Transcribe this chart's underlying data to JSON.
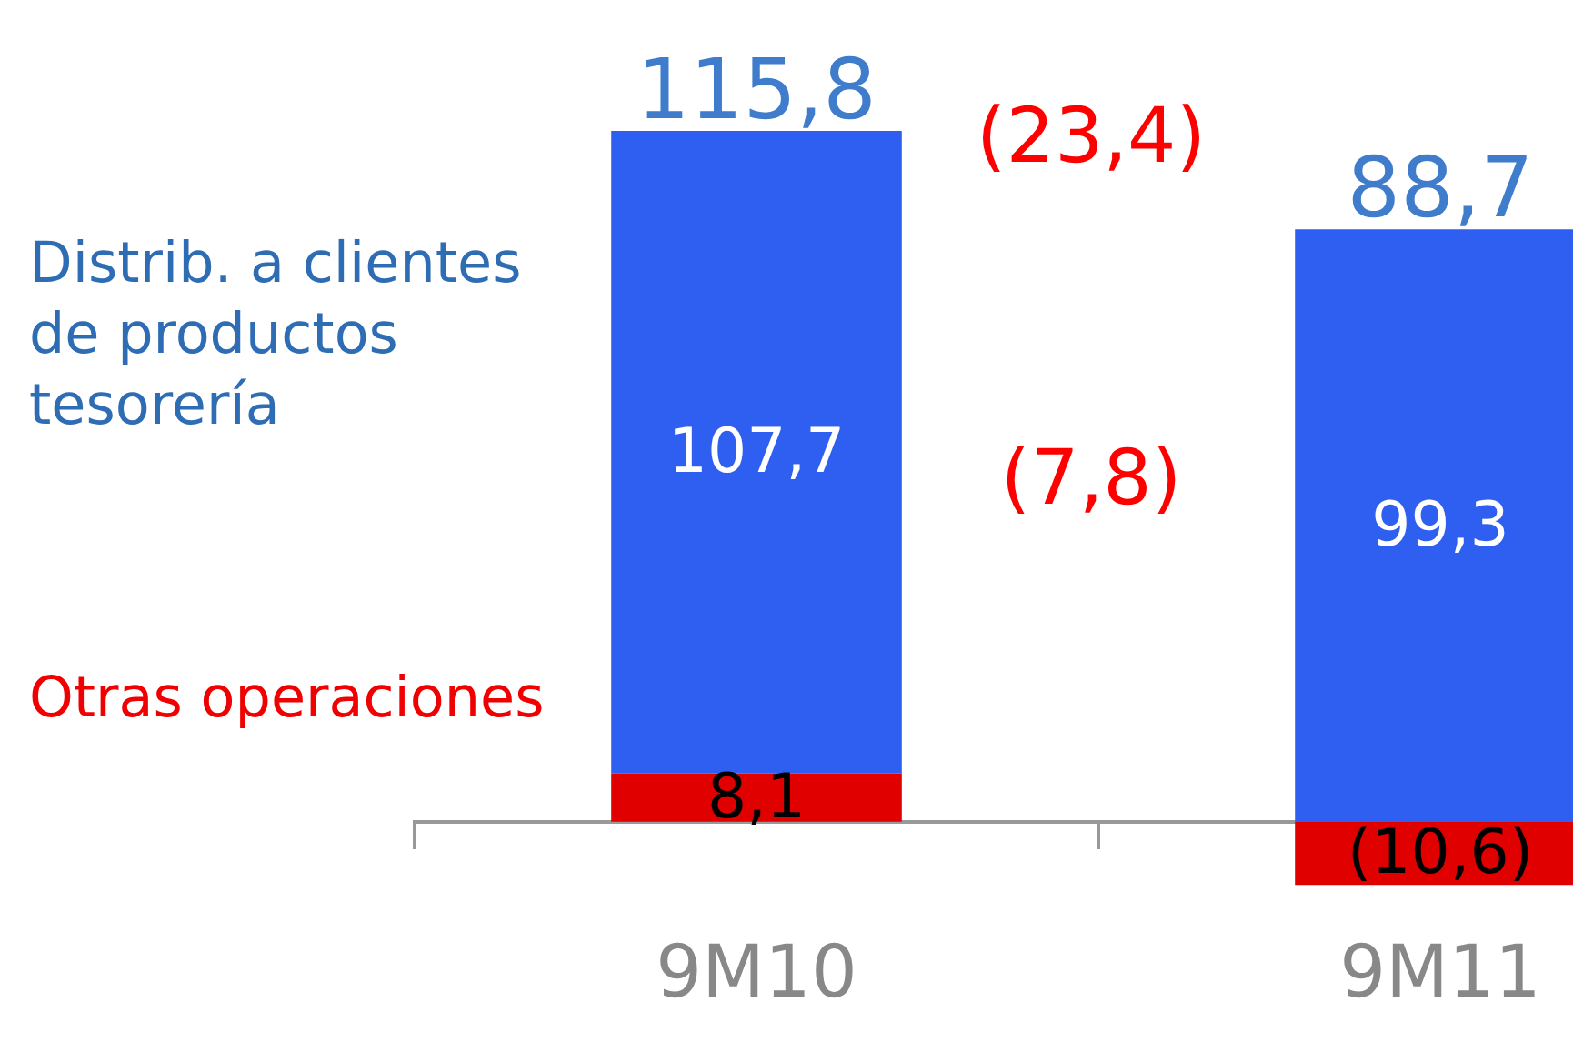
{
  "chart_data": {
    "type": "bar",
    "categories": [
      "9M10",
      "9M11"
    ],
    "stacked": true,
    "legend": "left",
    "series": [
      {
        "name": "Otras operaciones",
        "color": "#e00000",
        "values": [
          8.1,
          -10.6
        ],
        "value_labels": [
          "8,1",
          "(10,6)"
        ]
      },
      {
        "name": "Distrib. a clientes de productos tesorería",
        "color": "#2f5ff0",
        "values": [
          107.7,
          99.3
        ],
        "value_labels": [
          "107,7",
          "99,3"
        ]
      }
    ],
    "totals": [
      "115,8",
      "88,7"
    ],
    "annotations": [
      "(23,4)",
      "(7,8)"
    ]
  }
}
